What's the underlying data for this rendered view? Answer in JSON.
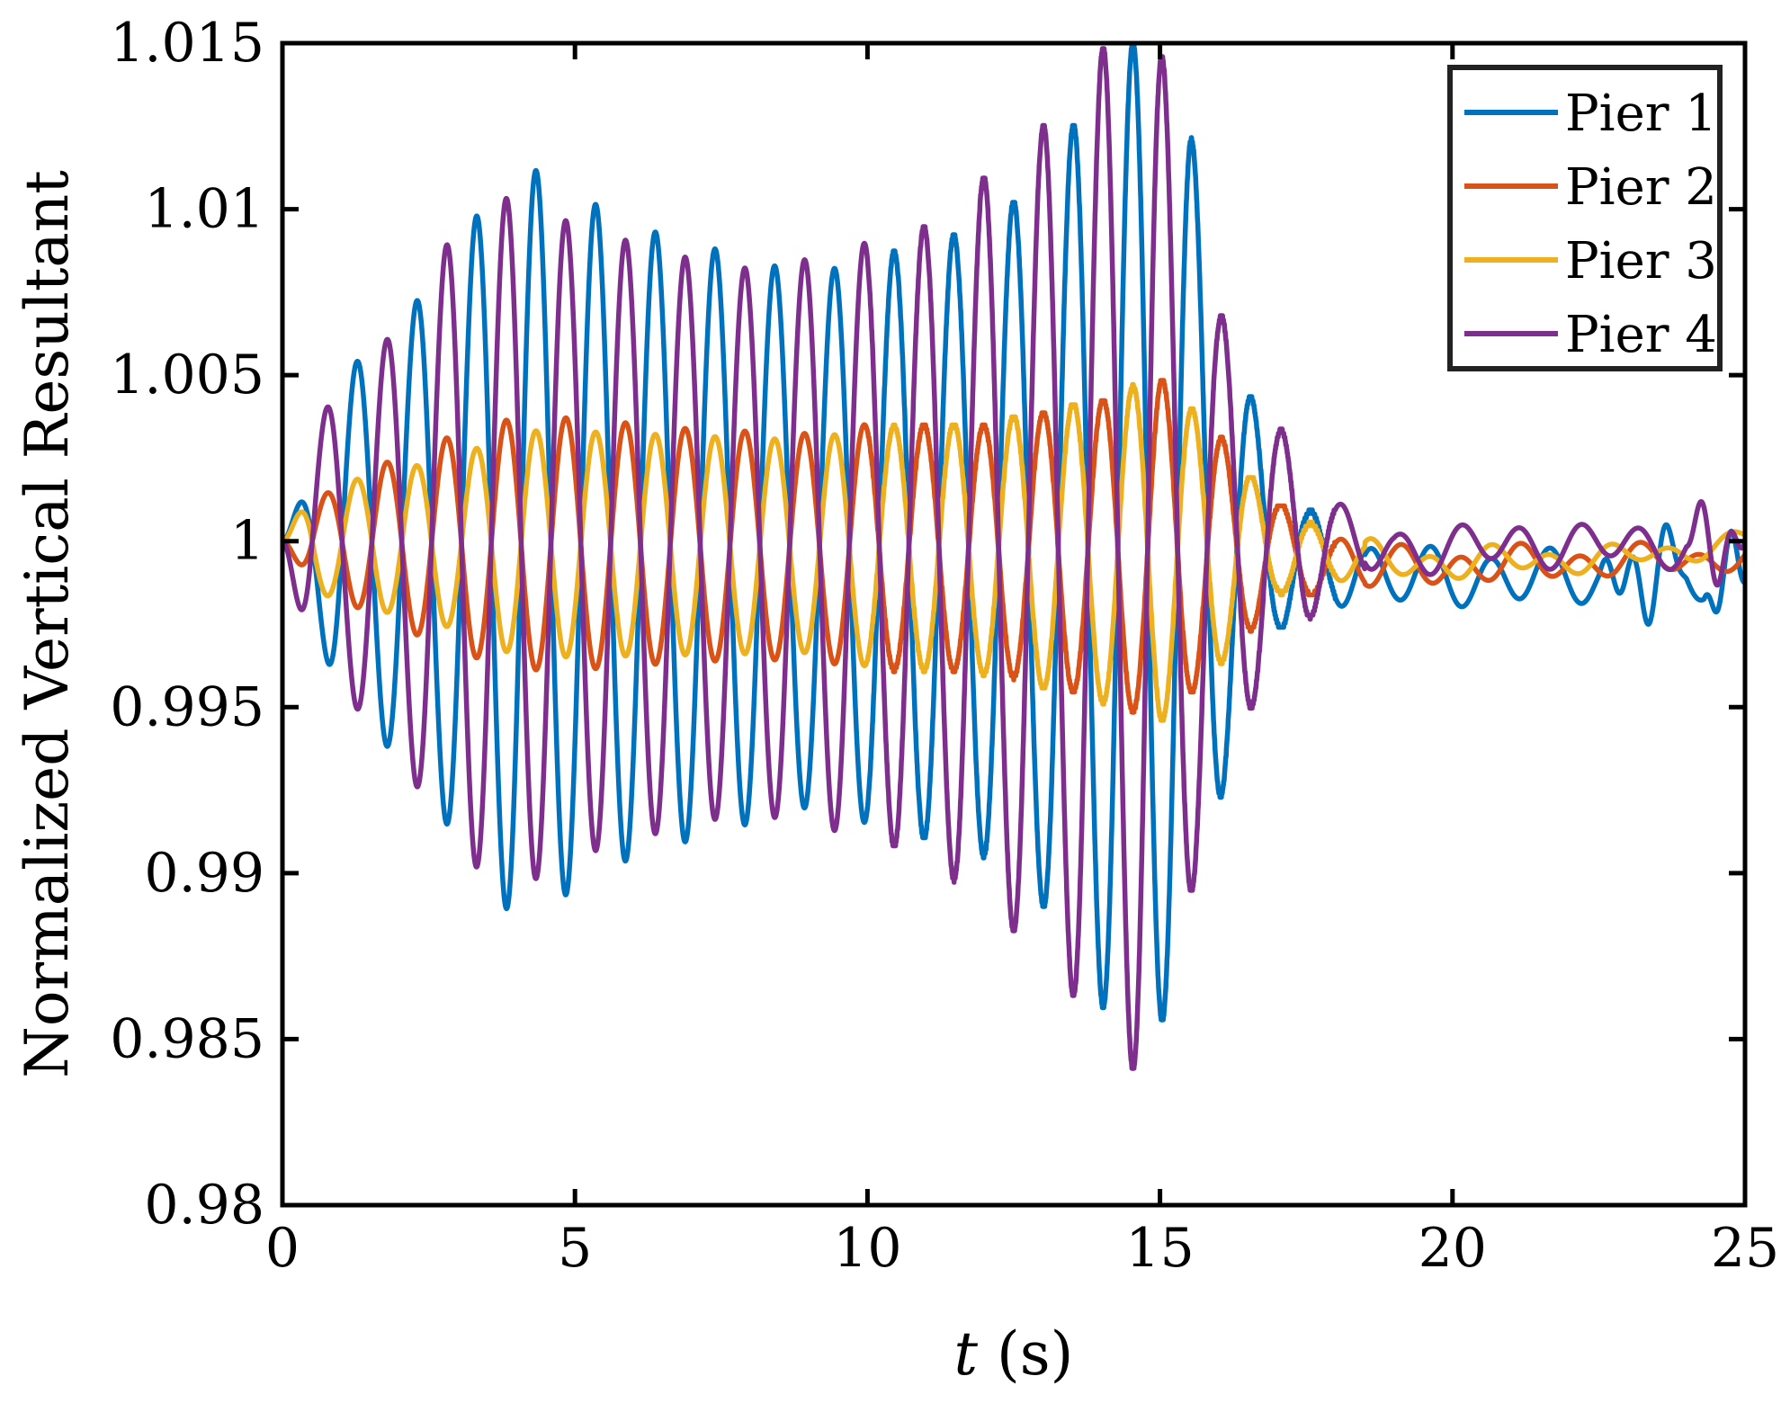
{
  "chart_data": {
    "type": "line",
    "xlabel_var": "t",
    "xlabel_unit": " (s)",
    "ylabel": "Normalized Vertical Resultant",
    "xlim": [
      0,
      25
    ],
    "ylim": [
      0.98,
      1.015
    ],
    "xticks": [
      0,
      5,
      10,
      15,
      20,
      25
    ],
    "xtick_labels": [
      "0",
      "5",
      "10",
      "15",
      "20",
      "25"
    ],
    "yticks": [
      0.98,
      0.985,
      0.99,
      0.995,
      1.0,
      1.005,
      1.01,
      1.015
    ],
    "ytick_labels": [
      "0.98",
      "0.985",
      "0.99",
      "0.995",
      "1",
      "1.005",
      "1.01",
      "1.015"
    ],
    "grid": false,
    "legend_position": "top-right",
    "series": [
      {
        "name": "Pier 1",
        "color": "#0072BD",
        "phase": 0,
        "amplitude": [
          [
            0,
            0
          ],
          [
            0.5,
            0.002
          ],
          [
            1,
            0.005
          ],
          [
            2,
            0.0065
          ],
          [
            3,
            0.009
          ],
          [
            4,
            0.0115
          ],
          [
            5,
            0.0105
          ],
          [
            6,
            0.0095
          ],
          [
            7,
            0.009
          ],
          [
            8,
            0.0085
          ],
          [
            9,
            0.008
          ],
          [
            10,
            0.0085
          ],
          [
            11,
            0.009
          ],
          [
            12,
            0.0095
          ],
          [
            13,
            0.011
          ],
          [
            14,
            0.014
          ],
          [
            14.8,
            0.0155
          ],
          [
            15.5,
            0.0125
          ],
          [
            16.3,
            0.0055
          ],
          [
            17,
            0.0025
          ],
          [
            17.5,
            0.0015
          ],
          [
            18,
            0.0012
          ],
          [
            19,
            0.0008
          ],
          [
            25,
            0.0006
          ]
        ],
        "offset": [
          [
            0,
            0
          ],
          [
            16.5,
            0
          ],
          [
            17.5,
            -0.0005
          ],
          [
            18.5,
            -0.001
          ],
          [
            19,
            -0.0011
          ],
          [
            25,
            -0.0011
          ]
        ],
        "wiggle": [
          [
            22.5,
            24
          ],
          [
            24.3,
            25
          ]
        ]
      },
      {
        "name": "Pier 2",
        "color": "#D95319",
        "phase": 3.14159,
        "amplitude": [
          [
            0,
            0
          ],
          [
            0.5,
            0.0012
          ],
          [
            1.5,
            0.0022
          ],
          [
            3,
            0.0033
          ],
          [
            4,
            0.0038
          ],
          [
            5,
            0.0038
          ],
          [
            7,
            0.0035
          ],
          [
            9,
            0.0034
          ],
          [
            10,
            0.0037
          ],
          [
            12,
            0.0037
          ],
          [
            14,
            0.0045
          ],
          [
            15,
            0.0052
          ],
          [
            16,
            0.0035
          ],
          [
            17,
            0.0015
          ],
          [
            18,
            0.0008
          ],
          [
            19,
            0.0005
          ],
          [
            25,
            0.0003
          ]
        ],
        "offset": [
          [
            0,
            0
          ],
          [
            17,
            -0.0003
          ],
          [
            18,
            -0.0007
          ],
          [
            19,
            -0.0008
          ],
          [
            25,
            -0.0005
          ]
        ],
        "wiggle": []
      },
      {
        "name": "Pier 3",
        "color": "#EDB120",
        "phase": 0,
        "amplitude": [
          [
            0,
            0
          ],
          [
            0.5,
            0.0015
          ],
          [
            1.5,
            0.002
          ],
          [
            3,
            0.0026
          ],
          [
            4,
            0.0034
          ],
          [
            5,
            0.0034
          ],
          [
            7,
            0.0033
          ],
          [
            9,
            0.0032
          ],
          [
            10,
            0.0036
          ],
          [
            12,
            0.0038
          ],
          [
            14,
            0.0046
          ],
          [
            15,
            0.0052
          ],
          [
            16,
            0.0035
          ],
          [
            17,
            0.0013
          ],
          [
            18,
            0.0007
          ],
          [
            19,
            0.0004
          ],
          [
            25,
            0.0002
          ]
        ],
        "offset": [
          [
            0,
            0
          ],
          [
            17,
            -0.0003
          ],
          [
            18,
            -0.0005
          ],
          [
            19,
            -0.0007
          ],
          [
            23,
            -0.0005
          ],
          [
            25,
            0
          ]
        ],
        "wiggle": []
      },
      {
        "name": "Pier 4",
        "color": "#7E2F8E",
        "phase": 3.14159,
        "amplitude": [
          [
            0,
            0
          ],
          [
            0.5,
            0.0035
          ],
          [
            1,
            0.0045
          ],
          [
            2,
            0.0065
          ],
          [
            3,
            0.0095
          ],
          [
            4,
            0.0105
          ],
          [
            5,
            0.0095
          ],
          [
            6,
            0.009
          ],
          [
            7,
            0.0085
          ],
          [
            8,
            0.0082
          ],
          [
            9,
            0.0085
          ],
          [
            10,
            0.009
          ],
          [
            11,
            0.0095
          ],
          [
            12,
            0.011
          ],
          [
            13,
            0.0125
          ],
          [
            14,
            0.0148
          ],
          [
            14.8,
            0.0165
          ],
          [
            15.3,
            0.0125
          ],
          [
            16,
            0.007
          ],
          [
            17,
            0.0035
          ],
          [
            17.5,
            0.0025
          ],
          [
            18,
            0.0012
          ],
          [
            19,
            0.0006
          ],
          [
            25,
            0.0005
          ]
        ],
        "offset": [
          [
            0,
            0
          ],
          [
            18,
            0
          ],
          [
            19,
            -0.0003
          ],
          [
            21,
            -0.0001
          ],
          [
            23,
            -0.0001
          ],
          [
            25,
            -0.0002
          ]
        ],
        "wiggle": [
          [
            24,
            25
          ]
        ]
      }
    ]
  }
}
